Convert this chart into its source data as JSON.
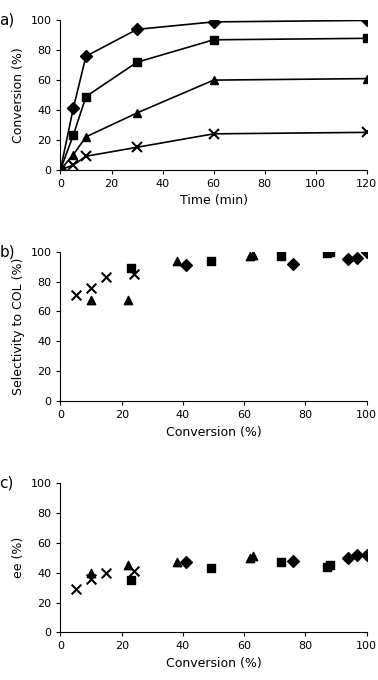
{
  "panel_a": {
    "title": "a)",
    "xlabel": "Time (min)",
    "ylabel": "Conversion (%)",
    "xlim": [
      0,
      120
    ],
    "ylim": [
      0,
      100
    ],
    "xticks": [
      0,
      20,
      40,
      60,
      80,
      100,
      120
    ],
    "yticks": [
      0,
      20,
      40,
      60,
      80,
      100
    ],
    "series": {
      "methanol": {
        "time": [
          0,
          5,
          10,
          30,
          60,
          120
        ],
        "conv": [
          0,
          41,
          76,
          94,
          99,
          100
        ],
        "marker": "D"
      },
      "ethanol": {
        "time": [
          0,
          5,
          10,
          30,
          60,
          120
        ],
        "conv": [
          0,
          23,
          49,
          72,
          87,
          88
        ],
        "marker": "s"
      },
      "propanol1": {
        "time": [
          0,
          5,
          10,
          30,
          60,
          120
        ],
        "conv": [
          0,
          10,
          22,
          38,
          60,
          61
        ],
        "marker": "^"
      },
      "propanol2": {
        "time": [
          0,
          5,
          10,
          30,
          60,
          120
        ],
        "conv": [
          0,
          3,
          9,
          15,
          24,
          25
        ],
        "marker": "x"
      }
    }
  },
  "panel_b": {
    "title": "b)",
    "xlabel": "Conversion (%)",
    "ylabel": "Selectivity to COL (%)",
    "xlim": [
      0,
      100
    ],
    "ylim": [
      0,
      100
    ],
    "xticks": [
      0,
      20,
      40,
      60,
      80,
      100
    ],
    "yticks": [
      0,
      20,
      40,
      60,
      80,
      100
    ],
    "series": {
      "methanol": {
        "conv": [
          41,
          76,
          94,
          97,
          100
        ],
        "sel": [
          91,
          92,
          95,
          96,
          100
        ],
        "marker": "D"
      },
      "ethanol": {
        "conv": [
          23,
          49,
          72,
          87,
          88
        ],
        "sel": [
          89,
          94,
          97,
          99,
          100
        ],
        "marker": "s"
      },
      "propanol1": {
        "conv": [
          10,
          22,
          38,
          62,
          63
        ],
        "sel": [
          68,
          68,
          94,
          97,
          98
        ],
        "marker": "^"
      },
      "propanol2": {
        "conv": [
          5,
          10,
          15,
          24
        ],
        "sel": [
          71,
          76,
          83,
          85
        ],
        "marker": "x"
      }
    }
  },
  "panel_c": {
    "title": "c)",
    "xlabel": "Conversion (%)",
    "ylabel": "ee (%)",
    "xlim": [
      0,
      100
    ],
    "ylim": [
      0,
      100
    ],
    "xticks": [
      0,
      20,
      40,
      60,
      80,
      100
    ],
    "yticks": [
      0,
      20,
      40,
      60,
      80,
      100
    ],
    "series": {
      "methanol": {
        "conv": [
          41,
          76,
          94,
          97,
          100
        ],
        "ee": [
          47,
          48,
          50,
          52,
          52
        ],
        "marker": "D"
      },
      "ethanol": {
        "conv": [
          23,
          49,
          72,
          87,
          88
        ],
        "ee": [
          35,
          43,
          47,
          44,
          45
        ],
        "marker": "s"
      },
      "propanol1": {
        "conv": [
          10,
          22,
          38,
          62,
          63
        ],
        "ee": [
          40,
          45,
          47,
          50,
          51
        ],
        "marker": "^"
      },
      "propanol2": {
        "conv": [
          5,
          10,
          15,
          24
        ],
        "ee": [
          29,
          36,
          40,
          41
        ],
        "marker": "x"
      }
    }
  },
  "color": "#000000",
  "markersize": 6,
  "linewidth": 1.2
}
